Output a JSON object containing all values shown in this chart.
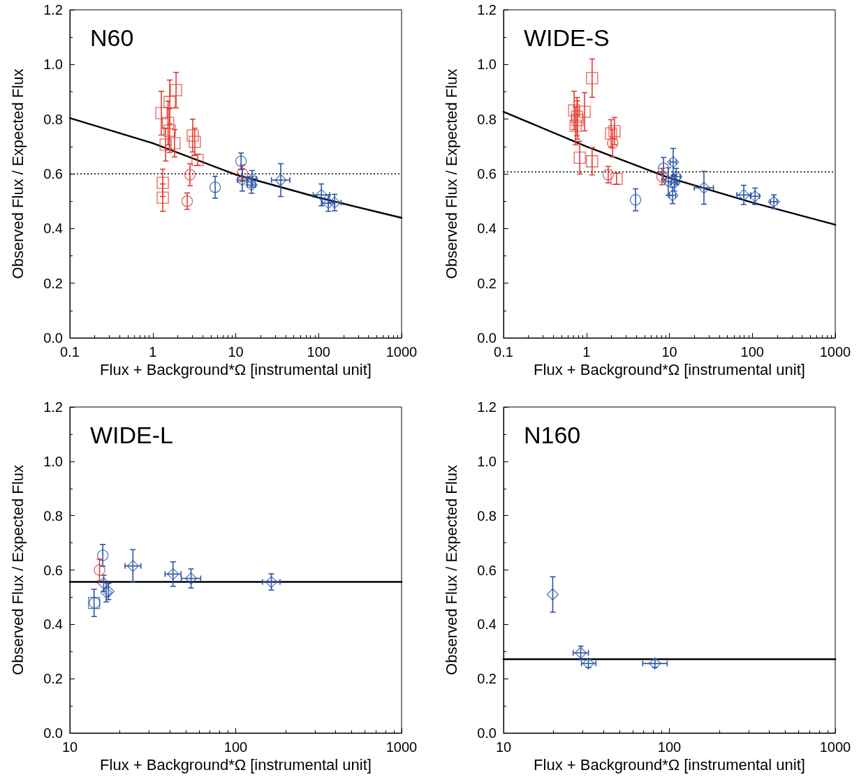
{
  "chart_data": [
    {
      "type": "scatter",
      "title": "N60",
      "xlabel": "Flux + Background*Ω [instrumental unit]",
      "ylabel": "Observed Flux / Expected Flux",
      "log": "x",
      "xlim": [
        0.1,
        1000
      ],
      "xticks": [
        0.1,
        1,
        10,
        100,
        1000
      ],
      "ylim": [
        0,
        1.2
      ],
      "yticks": [
        {
          "value": 0,
          "label": "0.0"
        },
        {
          "value": 0.2,
          "label": "0.2"
        },
        {
          "value": 0.4,
          "label": "0.4"
        },
        {
          "value": 0.6,
          "label": "0.6"
        },
        {
          "value": 0.8,
          "label": "0.8"
        },
        {
          "value": 1,
          "label": "1.0"
        },
        {
          "value": 1.2,
          "label": "1.2"
        }
      ],
      "series": [
        {
          "color": "#e03c31",
          "marker": "square",
          "x": [
            1.27,
            1.91,
            1.6,
            1.53,
            1.6,
            1.43,
            1.83,
            3.03,
            3.21,
            3.47,
            1.32,
            1.32
          ],
          "values": [
            0.822,
            0.906,
            0.863,
            0.786,
            0.758,
            0.707,
            0.712,
            0.74,
            0.717,
            0.651,
            0.567,
            0.513
          ],
          "errors": [
            0.08,
            0.065,
            0.08,
            0.08,
            0.08,
            0.06,
            0.05,
            0.06,
            0.05,
            0.02,
            0.05,
            0.05
          ]
        },
        {
          "color": "#e03c31",
          "marker": "circle",
          "x": [
            2.81,
            2.6,
            12
          ],
          "values": [
            0.597,
            0.5,
            0.602
          ],
          "errors": [
            0.04,
            0.03,
            0.03
          ]
        },
        {
          "color": "#2a55a6",
          "marker": "circle",
          "x": [
            11.6,
            5.65
          ],
          "values": [
            0.646,
            0.551
          ],
          "errors": [
            0.03,
            0.04
          ]
        },
        {
          "color": "#2a55a6",
          "marker": "diamond",
          "x": [
            12,
            15.8,
            15.5,
            34.9,
            108,
            131,
            156
          ],
          "values": [
            0.577,
            0.582,
            0.559,
            0.577,
            0.523,
            0.493,
            0.495
          ],
          "errors": [
            0.04,
            0.03,
            0.03,
            0.06,
            0.04,
            0.03,
            0.03
          ],
          "xerrors": [
            [
              10.5,
              13.7
            ],
            [
              14,
              17.8
            ],
            [
              13.8,
              17.4
            ],
            [
              27,
              45
            ],
            [
              86,
              136
            ],
            [
              110,
              155
            ],
            [
              131,
              186
            ]
          ]
        },
        {
          "type": "line",
          "color": "#000000",
          "marker": "none",
          "line_style": "solid",
          "x": [
            0.1,
            1,
            10,
            100,
            1000
          ],
          "values": [
            0.804,
            0.712,
            0.597,
            0.513,
            0.439
          ]
        }
      ],
      "ref_lines": [
        {
          "axis": "y",
          "value": 0.6,
          "line_style": "dotted",
          "color": "#000000"
        }
      ]
    },
    {
      "type": "scatter",
      "title": "WIDE-S",
      "xlabel": "Flux + Background*Ω [instrumental unit]",
      "ylabel": "Observed Flux / Expected Flux",
      "log": "x",
      "xlim": [
        0.1,
        1000
      ],
      "xticks": [
        0.1,
        1,
        10,
        100,
        1000
      ],
      "ylim": [
        0,
        1.2
      ],
      "yticks": [
        {
          "value": 0,
          "label": "0.0"
        },
        {
          "value": 0.2,
          "label": "0.2"
        },
        {
          "value": 0.4,
          "label": "0.4"
        },
        {
          "value": 0.6,
          "label": "0.6"
        },
        {
          "value": 0.8,
          "label": "0.8"
        },
        {
          "value": 1,
          "label": "1.0"
        },
        {
          "value": 1.2,
          "label": "1.2"
        }
      ],
      "series": [
        {
          "color": "#e03c31",
          "marker": "square",
          "x": [
            1.17,
            0.71,
            0.77,
            0.74,
            0.78,
            0.95,
            0.83,
            1.17,
            1.98,
            2.18,
            2.31
          ],
          "values": [
            0.95,
            0.832,
            0.809,
            0.776,
            0.797,
            0.827,
            0.659,
            0.646,
            0.748,
            0.756,
            0.582
          ],
          "errors": [
            0.07,
            0.07,
            0.07,
            0.07,
            0.07,
            0.07,
            0.06,
            0.05,
            0.05,
            0.05,
            0.02
          ]
        },
        {
          "color": "#e03c31",
          "marker": "circle",
          "x": [
            1.83,
            2.07,
            8.16
          ],
          "values": [
            0.597,
            0.712,
            0.59
          ],
          "errors": [
            0.03,
            0.05,
            0.03
          ]
        },
        {
          "color": "#2a55a6",
          "marker": "circle",
          "x": [
            3.91,
            8.5
          ],
          "values": [
            0.505,
            0.62
          ],
          "errors": [
            0.04,
            0.04
          ]
        },
        {
          "color": "#2a55a6",
          "marker": "diamond",
          "x": [
            11.1,
            9.7,
            11.5,
            12.1,
            10.9,
            26.1,
            78.9,
            108,
            182
          ],
          "values": [
            0.643,
            0.572,
            0.567,
            0.59,
            0.521,
            0.549,
            0.523,
            0.518,
            0.498
          ],
          "errors": [
            0.05,
            0.05,
            0.03,
            0.03,
            0.03,
            0.06,
            0.035,
            0.03,
            0.025
          ],
          "xerrors": [
            [
              10.2,
              12.1
            ],
            [
              8.9,
              10.6
            ],
            [
              10.5,
              12.6
            ],
            [
              10.8,
              13.6
            ],
            [
              10,
              11.9
            ],
            [
              20,
              34
            ],
            [
              65,
              96
            ],
            [
              95,
              122
            ],
            [
              165,
              200
            ]
          ]
        },
        {
          "type": "line",
          "color": "#000000",
          "marker": "none",
          "line_style": "solid",
          "x": [
            0.1,
            1,
            10,
            100,
            1000
          ],
          "values": [
            0.827,
            0.7,
            0.585,
            0.495,
            0.414
          ]
        }
      ],
      "ref_lines": [
        {
          "axis": "y",
          "value": 0.607,
          "line_style": "dotted",
          "color": "#000000"
        }
      ]
    },
    {
      "type": "scatter",
      "title": "WIDE-L",
      "xlabel": "Flux + Background*Ω [instrumental unit]",
      "ylabel": "Observed Flux / Expected Flux",
      "log": "x",
      "xlim": [
        10,
        1000
      ],
      "xticks": [
        10,
        100,
        1000
      ],
      "ylim": [
        0,
        1.2
      ],
      "yticks": [
        {
          "value": 0,
          "label": "0.0"
        },
        {
          "value": 0.2,
          "label": "0.2"
        },
        {
          "value": 0.4,
          "label": "0.4"
        },
        {
          "value": 0.6,
          "label": "0.6"
        },
        {
          "value": 0.8,
          "label": "0.8"
        },
        {
          "value": 1,
          "label": "1.0"
        },
        {
          "value": 1.2,
          "label": "1.2"
        }
      ],
      "series": [
        {
          "color": "#2a55a6",
          "marker": "square",
          "x": [
            14
          ],
          "values": [
            0.479
          ],
          "errors": [
            0.05
          ]
        },
        {
          "color": "#e03c31",
          "marker": "circle",
          "x": [
            15.1
          ],
          "values": [
            0.6
          ],
          "errors": [
            0.04
          ]
        },
        {
          "color": "#2a55a6",
          "marker": "circle",
          "x": [
            14.1,
            15.8
          ],
          "values": [
            0.479,
            0.654
          ],
          "errors": [
            null,
            0.04
          ]
        },
        {
          "color": "#2a55a6",
          "marker": "diamond",
          "x": [
            16,
            16.6,
            17.1,
            24,
            41.9,
            53.8,
            164
          ],
          "values": [
            0.551,
            0.518,
            0.521,
            0.615,
            0.585,
            0.569,
            0.556
          ],
          "errors": [
            0.03,
            0.035,
            0.03,
            0.06,
            0.045,
            0.035,
            0.03
          ],
          "xerrors": [
            null,
            null,
            null,
            [
              21.5,
              26.8
            ],
            [
              37.5,
              46.8
            ],
            [
              47,
              61.5
            ],
            [
              145,
              185
            ]
          ]
        },
        {
          "type": "line",
          "color": "#000000",
          "marker": "none",
          "line_style": "solid",
          "x": [
            10,
            1000
          ],
          "values": [
            0.556,
            0.556
          ]
        }
      ]
    },
    {
      "type": "scatter",
      "title": "N160",
      "xlabel": "Flux + Background*Ω [instrumental unit]",
      "ylabel": "Observed Flux / Expected Flux",
      "log": "x",
      "xlim": [
        10,
        1000
      ],
      "xticks": [
        10,
        100,
        1000
      ],
      "ylim": [
        0,
        1.2
      ],
      "yticks": [
        {
          "value": 0,
          "label": "0.0"
        },
        {
          "value": 0.2,
          "label": "0.2"
        },
        {
          "value": 0.4,
          "label": "0.4"
        },
        {
          "value": 0.6,
          "label": "0.6"
        },
        {
          "value": 0.8,
          "label": "0.8"
        },
        {
          "value": 1,
          "label": "1.0"
        },
        {
          "value": 1.2,
          "label": "1.2"
        }
      ],
      "series": [
        {
          "color": "#2a55a6",
          "marker": "diamond",
          "x": [
            19.8,
            29.2,
            32.5,
            81.8
          ],
          "values": [
            0.51,
            0.295,
            0.256,
            0.256
          ],
          "errors": [
            0.065,
            0.025,
            0.015,
            0.015
          ],
          "xerrors": [
            null,
            [
              26.3,
              32.5
            ],
            [
              29.5,
              36
            ],
            [
              69,
              97
            ]
          ]
        },
        {
          "type": "line",
          "color": "#000000",
          "marker": "none",
          "line_style": "solid",
          "x": [
            10,
            1000
          ],
          "values": [
            0.272,
            0.272
          ]
        }
      ]
    }
  ]
}
